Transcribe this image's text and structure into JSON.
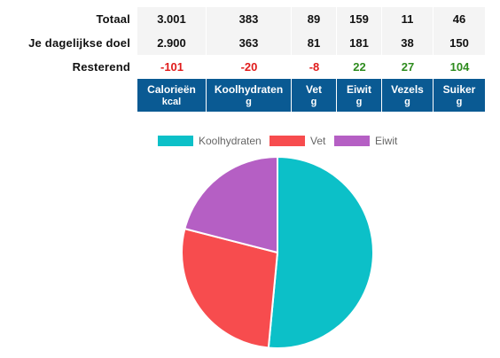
{
  "table": {
    "rows": [
      {
        "label": "Totaal",
        "values": [
          "3.001",
          "383",
          "89",
          "159",
          "11",
          "46"
        ]
      },
      {
        "label": "Je dagelijkse doel",
        "values": [
          "2.900",
          "363",
          "81",
          "181",
          "38",
          "150"
        ]
      },
      {
        "label": "Resterend",
        "values": [
          "-101",
          "-20",
          "-8",
          "22",
          "27",
          "104"
        ]
      }
    ],
    "columns": [
      {
        "name": "Calorieën",
        "unit": "kcal"
      },
      {
        "name": "Koolhydraten",
        "unit": "g"
      },
      {
        "name": "Vet",
        "unit": "g"
      },
      {
        "name": "Eiwit",
        "unit": "g"
      },
      {
        "name": "Vezels",
        "unit": "g"
      },
      {
        "name": "Suiker",
        "unit": "g"
      }
    ],
    "colors": {
      "header_bg": "#0a5a93",
      "negative": "#e01b1b",
      "positive": "#2e8b1e"
    }
  },
  "chart_data": {
    "type": "pie",
    "categories": [
      "Koolhydraten",
      "Vet",
      "Eiwit"
    ],
    "values": [
      51.5,
      27.5,
      21.0
    ],
    "colors": [
      "#0cc0c8",
      "#f74c4e",
      "#b55fc4"
    ],
    "legend": "top"
  }
}
